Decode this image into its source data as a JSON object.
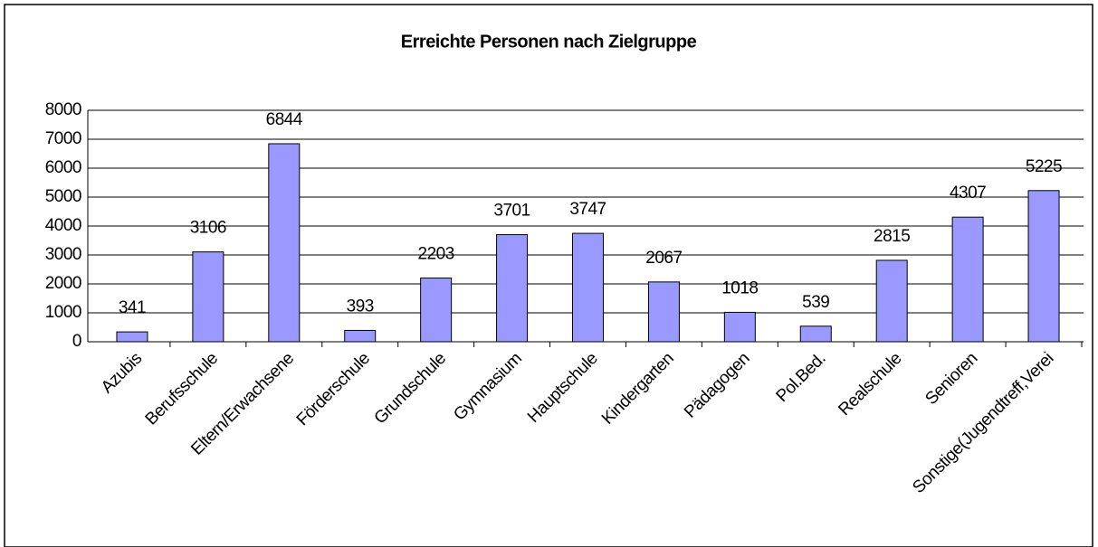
{
  "chart_data": {
    "type": "bar",
    "title": "Erreichte Personen nach Zielgruppe",
    "categories": [
      "Azubis",
      "Berufsschule",
      "Eltern/Erwachsene",
      "Förderschule",
      "Grundschule",
      "Gymnasium",
      "Hauptschule",
      "Kindergarten",
      "Pädagogen",
      "Pol.Bed.",
      "Realschule",
      "Senioren",
      "Sonstige(Jugendtreff,Verei"
    ],
    "values": [
      341,
      3106,
      6844,
      393,
      2203,
      3701,
      3747,
      2067,
      1018,
      539,
      2815,
      4307,
      5225
    ],
    "color": "#9999ff",
    "ylim": [
      0,
      8000
    ],
    "yticks": [
      0,
      1000,
      2000,
      3000,
      4000,
      5000,
      6000,
      7000,
      8000
    ],
    "grid": true
  }
}
